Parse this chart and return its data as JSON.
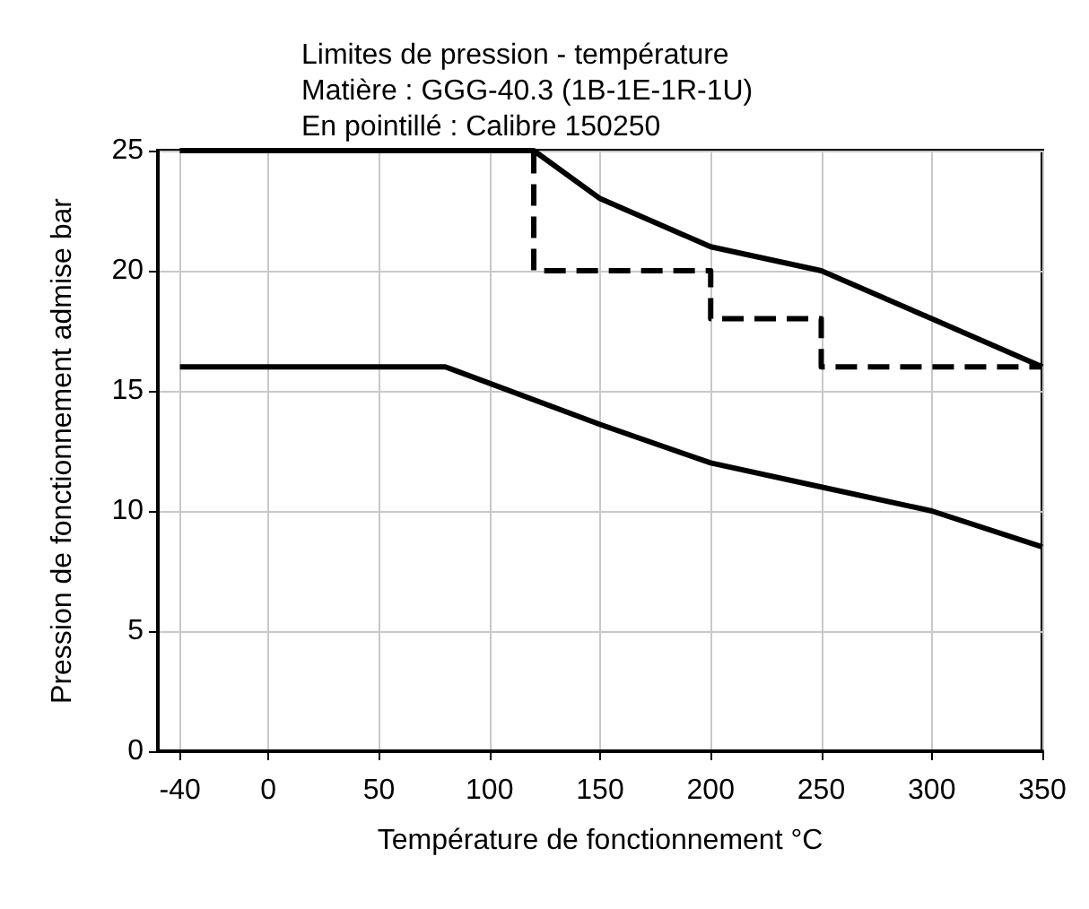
{
  "chart_data": {
    "type": "line",
    "title": "Limites de pression - température\nMatière : GGG-40.3 (1B-1E-1R-1U)\nEn pointillé : Calibre 150250",
    "xlabel": "Température de fonctionnement °C",
    "ylabel": "Pression de fonctionnement admise bar",
    "series": [
      {
        "color": "#000000",
        "line_style": "solid",
        "x": [
          -40,
          120,
          150,
          200,
          250,
          300,
          350
        ],
        "values": [
          25,
          25,
          23,
          21,
          20,
          18,
          16
        ]
      },
      {
        "color": "#000000",
        "line_style": "dashed",
        "x": [
          -40,
          120,
          120,
          200,
          200,
          250,
          250,
          350
        ],
        "values": [
          25,
          25,
          20,
          20,
          18,
          18,
          16,
          16
        ]
      },
      {
        "color": "#000000",
        "line_style": "solid",
        "x": [
          -40,
          80,
          150,
          200,
          250,
          300,
          350
        ],
        "values": [
          16,
          16,
          13.6,
          12,
          11,
          10,
          8.5
        ]
      }
    ],
    "xlim": [
      -50,
      350
    ],
    "xticks": [
      -40,
      0,
      50,
      100,
      150,
      200,
      250,
      300,
      350
    ],
    "ylim": [
      0,
      25
    ],
    "yticks": [
      0,
      5,
      10,
      15,
      20,
      25
    ],
    "grid": true,
    "marker": "none"
  }
}
